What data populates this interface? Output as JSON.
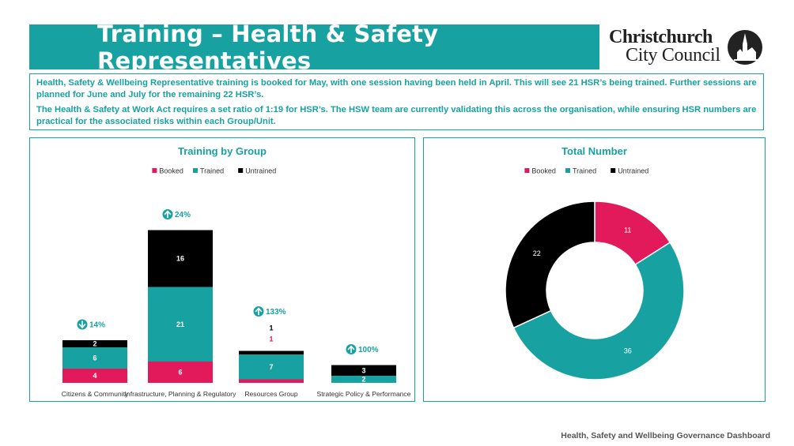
{
  "header": {
    "title": "Training – Health & Safety Representatives"
  },
  "logo": {
    "line1": "Christchurch",
    "line2": "City Council"
  },
  "intro": {
    "p1": "Health, Safety & Wellbeing Representative training is booked for May, with one session having been held in April. This will see 21 HSR’s being trained. Further sessions are planned for June and July for the remaining 22 HSR’s.",
    "p2": "The Health & Safety at Work Act requires a set ratio of 1:19 for HSR’s. The HSW team are currently validating this across the organisation, while ensuring HSR numbers are practical for the associated risks within each Group/Unit."
  },
  "colors": {
    "booked": "#e2195b",
    "trained": "#17a2a1",
    "untrained": "#000000",
    "accent": "#17a2a1"
  },
  "chart_data": [
    {
      "type": "bar",
      "title": "Training by Group",
      "stacked": true,
      "legend": "top-center",
      "categories": [
        "Citizens & Community",
        "Infrastructure, Planning & Regulatory",
        "Resources Group",
        "Strategic Policy & Performance"
      ],
      "series": [
        {
          "name": "Booked",
          "values": [
            4,
            6,
            1,
            0
          ]
        },
        {
          "name": "Trained",
          "values": [
            6,
            21,
            7,
            2
          ]
        },
        {
          "name": "Untrained",
          "values": [
            2,
            16,
            1,
            3
          ]
        }
      ],
      "annotations": [
        {
          "label": "14%",
          "direction": "down"
        },
        {
          "label": "24%",
          "direction": "up"
        },
        {
          "label": "133%",
          "direction": "up"
        },
        {
          "label": "100%",
          "direction": "up"
        }
      ]
    },
    {
      "type": "pie",
      "variant": "donut",
      "title": "Total Number",
      "legend": "top-center",
      "labels": [
        "Booked",
        "Trained",
        "Untrained"
      ],
      "values": [
        11,
        36,
        22
      ]
    }
  ],
  "footer": {
    "text": "Health, Safety and Wellbeing Governance Dashboard"
  }
}
